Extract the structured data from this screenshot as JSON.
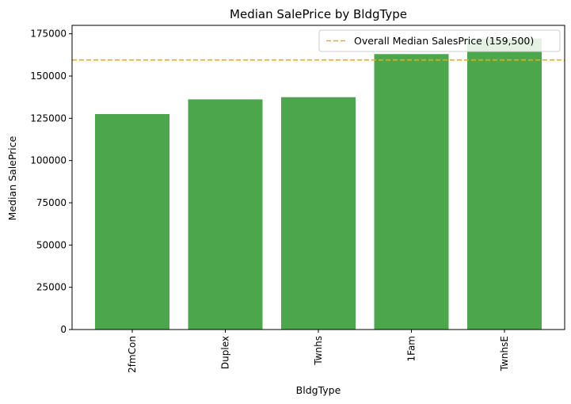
{
  "chart_data": {
    "type": "bar",
    "title": "Median SalePrice by BldgType",
    "xlabel": "BldgType",
    "ylabel": "Median SalePrice",
    "categories": [
      "2fmCon",
      "Duplex",
      "Twnhs",
      "1Fam",
      "TwnhsE"
    ],
    "values": [
      127500,
      136200,
      137500,
      163000,
      172200
    ],
    "ylim": [
      0,
      180000
    ],
    "yticks": [
      0,
      25000,
      50000,
      75000,
      100000,
      125000,
      150000,
      175000
    ],
    "ytick_labels": [
      "0",
      "25000",
      "50000",
      "75000",
      "100000",
      "125000",
      "150000",
      "175000"
    ],
    "bar_color": "#4ca64c",
    "reference_line": {
      "value": 159500,
      "label": "Overall Median SalesPrice (159,500)",
      "color": "#ffa500",
      "style": "dashed"
    },
    "legend": {
      "position": "top-right"
    },
    "grid": false
  }
}
